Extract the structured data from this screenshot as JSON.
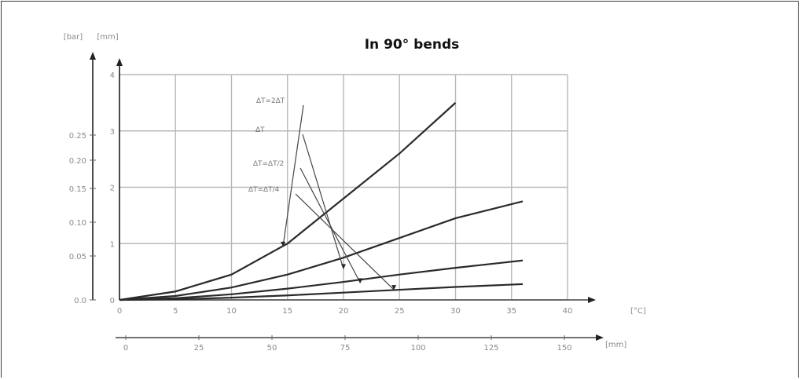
{
  "chart_data": {
    "type": "line",
    "title": "In 90° bends",
    "x_top": {
      "ticks": [
        "0",
        "5",
        "10",
        "15",
        "20",
        "25",
        "30",
        "35",
        "40"
      ],
      "unit": "[°C]",
      "range": [
        0,
        40
      ]
    },
    "x_bottom": {
      "ticks": [
        "0",
        "25",
        "50",
        "75",
        "100",
        "125",
        "150"
      ],
      "unit": "[mm]",
      "range": [
        0,
        150
      ]
    },
    "y_right": {
      "ticks": [
        "0",
        "1",
        "2",
        "3",
        "4"
      ],
      "unit": "[mm]",
      "range": [
        0,
        4
      ]
    },
    "y_left": {
      "ticks": [
        "0.0",
        "0.05",
        "0.10",
        "0.15",
        "0.20",
        "0.25"
      ],
      "unit": "[bar]"
    },
    "grid": true,
    "series": [
      {
        "label": "∆T=∆T/4",
        "x": [
          0,
          5,
          10,
          15,
          20,
          25,
          30
        ],
        "y": [
          0,
          0.15,
          0.45,
          1.0,
          1.8,
          2.6,
          3.5
        ]
      },
      {
        "label": "∆T=∆T/2",
        "x": [
          0,
          5,
          10,
          15,
          20,
          25,
          30,
          36
        ],
        "y": [
          0,
          0.07,
          0.22,
          0.45,
          0.75,
          1.1,
          1.45,
          1.75
        ]
      },
      {
        "label": "∆T",
        "x": [
          0,
          5,
          10,
          15,
          20,
          25,
          30,
          36
        ],
        "y": [
          0,
          0.03,
          0.1,
          0.2,
          0.32,
          0.45,
          0.57,
          0.7
        ]
      },
      {
        "label": "∆T=2∆T",
        "x": [
          0,
          5,
          10,
          15,
          20,
          25,
          30,
          36
        ],
        "y": [
          0,
          0.01,
          0.04,
          0.08,
          0.13,
          0.18,
          0.23,
          0.28
        ]
      }
    ]
  }
}
